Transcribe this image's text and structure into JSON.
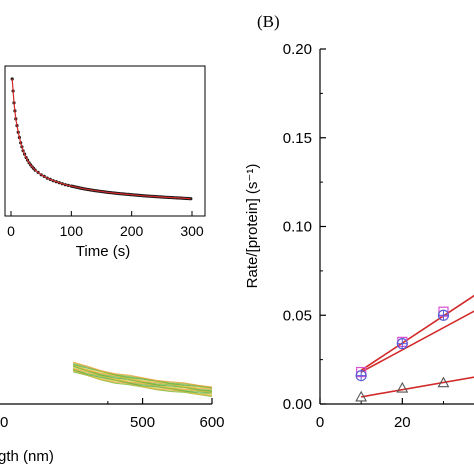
{
  "chart_data": [
    {
      "type": "line",
      "panel": "A (cropped)",
      "title": "",
      "xlabel": "Wavelength (nm)",
      "visible_xlabel_fragment": "gth  (nm)",
      "ylabel": "",
      "xlim": [
        400,
        600
      ],
      "x_ticks": [
        500,
        600
      ],
      "x_tick_labels": [
        "500",
        "600"
      ],
      "x_partial_tick_label": "0",
      "series": [
        {
          "values_note": "overlapping spectra, colors cycle green/orange/yellow",
          "x": [
            400,
            420,
            440,
            460,
            480,
            500,
            520,
            540,
            560,
            580,
            600
          ],
          "y": [
            0.62,
            0.55,
            0.49,
            0.44,
            0.4,
            0.36,
            0.33,
            0.3,
            0.27,
            0.24,
            0.22
          ]
        }
      ],
      "series_colors": [
        "#7fbf3f",
        "#e8a33d",
        "#d8d24a",
        "#5fa84a"
      ],
      "inset": {
        "type": "scatter",
        "xlabel": "Time (s)",
        "xlim": [
          -10,
          300
        ],
        "x_ticks": [
          0,
          100,
          200,
          300
        ],
        "x_tick_labels": [
          "0",
          "100",
          "200",
          "300"
        ],
        "points": {
          "x": [
            2,
            5,
            8,
            12,
            16,
            20,
            25,
            30,
            35,
            40,
            50,
            60,
            70,
            80,
            90,
            100,
            120,
            140,
            160,
            180,
            200,
            220,
            240,
            260,
            280,
            298
          ],
          "y": [
            1.0,
            0.82,
            0.7,
            0.6,
            0.52,
            0.46,
            0.41,
            0.37,
            0.34,
            0.315,
            0.28,
            0.255,
            0.235,
            0.22,
            0.205,
            0.195,
            0.175,
            0.16,
            0.148,
            0.138,
            0.13,
            0.122,
            0.116,
            0.11,
            0.105,
            0.1
          ]
        },
        "marker_color": "#1a1a1a",
        "fit_color": "#d22a2a"
      }
    },
    {
      "type": "scatter",
      "panel_label": "(B)",
      "title": "",
      "xlabel": "",
      "ylabel": "Rate/[protein] (s⁻¹)",
      "xlim": [
        0,
        50
      ],
      "ylim": [
        0,
        0.2
      ],
      "x_ticks": [
        0,
        20
      ],
      "x_tick_labels": [
        "0",
        "20"
      ],
      "y_ticks": [
        0,
        0.05,
        0.1,
        0.15,
        0.2
      ],
      "y_tick_labels": [
        "0.00",
        "0.05",
        "0.10",
        "0.15",
        "0.20"
      ],
      "series": [
        {
          "marker": "square",
          "color": "#d94fd3",
          "x": [
            10,
            20,
            30
          ],
          "y": [
            0.018,
            0.035,
            0.052
          ]
        },
        {
          "marker": "circle-plus",
          "color": "#5b5bd6",
          "x": [
            10,
            20,
            30
          ],
          "y": [
            0.016,
            0.034,
            0.05
          ]
        },
        {
          "marker": "triangle",
          "color": "#555555",
          "x": [
            10,
            20,
            30
          ],
          "y": [
            0.004,
            0.009,
            0.012
          ]
        }
      ],
      "fits": [
        {
          "color": "#d22a2a",
          "x": [
            10,
            42
          ],
          "y": [
            0.019,
            0.068
          ]
        },
        {
          "color": "#d22a2a",
          "x": [
            10,
            42
          ],
          "y": [
            0.018,
            0.058
          ]
        },
        {
          "color": "#d22a2a",
          "x": [
            10,
            42
          ],
          "y": [
            0.004,
            0.017
          ]
        }
      ]
    }
  ]
}
